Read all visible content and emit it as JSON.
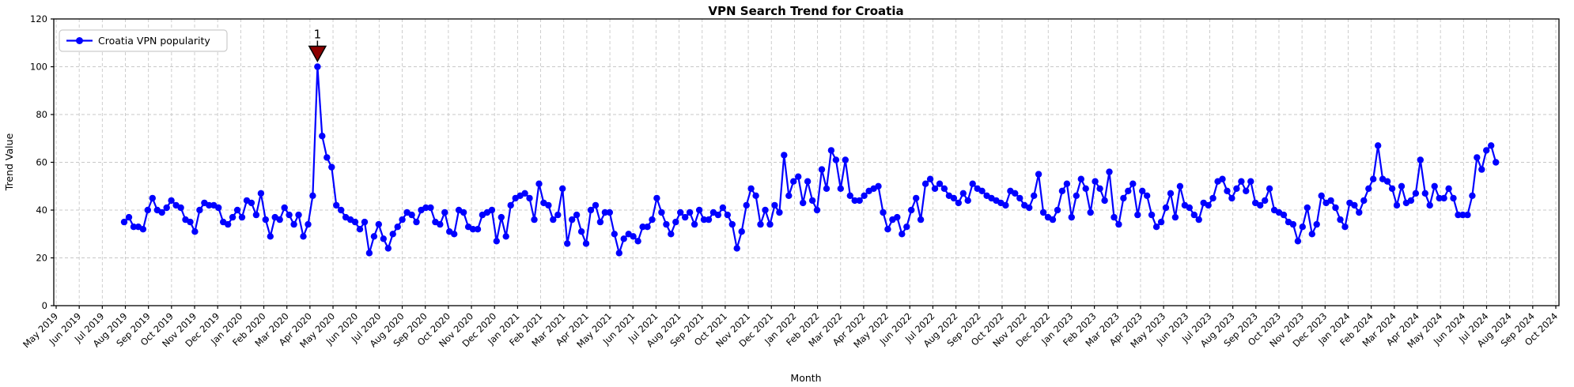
{
  "chart_data": {
    "type": "line",
    "title": "VPN Search Trend for Croatia",
    "xlabel": "Month",
    "ylabel": "Trend Value",
    "ylim": [
      0,
      120
    ],
    "yticks": [
      0,
      20,
      40,
      60,
      80,
      100,
      120
    ],
    "grid": true,
    "x_tick_labels": [
      "May 2019",
      "Jun 2019",
      "Jul 2019",
      "Aug 2019",
      "Sep 2019",
      "Oct 2019",
      "Nov 2019",
      "Dec 2019",
      "Jan 2020",
      "Feb 2020",
      "Mar 2020",
      "Apr 2020",
      "May 2020",
      "Jun 2020",
      "Jul 2020",
      "Aug 2020",
      "Sep 2020",
      "Oct 2020",
      "Nov 2020",
      "Dec 2020",
      "Jan 2021",
      "Feb 2021",
      "Mar 2021",
      "Apr 2021",
      "May 2021",
      "Jun 2021",
      "Jul 2021",
      "Aug 2021",
      "Sep 2021",
      "Oct 2021",
      "Nov 2021",
      "Dec 2021",
      "Jan 2022",
      "Feb 2022",
      "Mar 2022",
      "Apr 2022",
      "May 2022",
      "Jun 2022",
      "Jul 2022",
      "Aug 2022",
      "Sep 2022",
      "Oct 2022",
      "Nov 2022",
      "Dec 2022",
      "Jan 2023",
      "Feb 2023",
      "Mar 2023",
      "Apr 2023",
      "May 2023",
      "Jun 2023",
      "Jul 2023",
      "Aug 2023",
      "Sep 2023",
      "Oct 2023",
      "Nov 2023",
      "Dec 2023",
      "Jan 2024",
      "Feb 2024",
      "Mar 2024",
      "Apr 2024",
      "May 2024",
      "Jun 2024",
      "Jul 2024",
      "Aug 2024",
      "Sep 2024",
      "Oct 2024"
    ],
    "x_range_months": {
      "first_point": 2.95,
      "last_point": 62.4
    },
    "cadence": "weekly",
    "series": [
      {
        "name": "Croatia VPN popularity",
        "color": "#0000FF",
        "marker": "circle",
        "values": [
          35,
          37,
          33,
          33,
          32,
          40,
          45,
          40,
          39,
          41,
          44,
          42,
          41,
          36,
          35,
          31,
          40,
          43,
          42,
          42,
          41,
          35,
          34,
          37,
          40,
          37,
          44,
          43,
          38,
          47,
          36,
          29,
          37,
          36,
          41,
          38,
          34,
          38,
          29,
          34,
          46,
          100,
          71,
          62,
          58,
          42,
          40,
          37,
          36,
          35,
          32,
          35,
          22,
          29,
          34,
          28,
          24,
          30,
          33,
          36,
          39,
          38,
          35,
          40,
          41,
          41,
          35,
          34,
          39,
          31,
          30,
          40,
          39,
          33,
          32,
          32,
          38,
          39,
          40,
          27,
          37,
          29,
          42,
          45,
          46,
          47,
          45,
          36,
          51,
          43,
          42,
          36,
          38,
          49,
          26,
          36,
          38,
          31,
          26,
          40,
          42,
          35,
          39,
          39,
          30,
          22,
          28,
          30,
          29,
          27,
          33,
          33,
          36,
          45,
          39,
          34,
          30,
          35,
          39,
          37,
          39,
          34,
          40,
          36,
          36,
          39,
          38,
          41,
          38,
          34,
          24,
          31,
          42,
          49,
          46,
          34,
          40,
          34,
          42,
          39,
          63,
          46,
          52,
          54,
          43,
          52,
          44,
          40,
          57,
          49,
          65,
          61,
          49,
          61,
          46,
          44,
          44,
          46,
          48,
          49,
          50,
          39,
          32,
          36,
          37,
          30,
          33,
          40,
          45,
          36,
          51,
          53,
          49,
          51,
          49,
          46,
          45,
          43,
          47,
          44,
          51,
          49,
          48,
          46,
          45,
          44,
          43,
          42,
          48,
          47,
          45,
          42,
          41,
          46,
          55,
          39,
          37,
          36,
          40,
          48,
          51,
          37,
          46,
          53,
          49,
          39,
          52,
          49,
          44,
          56,
          37,
          34,
          45,
          48,
          51,
          38,
          48,
          46,
          38,
          33,
          35,
          41,
          47,
          37,
          50,
          42,
          41,
          38,
          36,
          43,
          42,
          45,
          52,
          53,
          48,
          45,
          49,
          52,
          48,
          52,
          43,
          42,
          44,
          49,
          40,
          39,
          38,
          35,
          34,
          27,
          33,
          41,
          30,
          34,
          46,
          43,
          44,
          41,
          36,
          33,
          43,
          42,
          39,
          44,
          49,
          53,
          67,
          53,
          52,
          49,
          42,
          50,
          43,
          44,
          47,
          61,
          47,
          42,
          50,
          45,
          45,
          49,
          45,
          38,
          38,
          38,
          46,
          62,
          57,
          65,
          67,
          60
        ]
      }
    ],
    "annotation": {
      "text": "1",
      "point_index": 41,
      "value": 100,
      "text_color": "#8B0000",
      "marker": "triangle-down",
      "marker_fill": "#8B0000",
      "marker_edge": "#000000"
    },
    "legend": {
      "position": "upper left",
      "entries": [
        {
          "label": "Croatia VPN popularity",
          "color": "#0000FF",
          "marker": "circle"
        }
      ]
    }
  },
  "colors": {
    "line": "#0000FF",
    "grid": "#c8c8c8",
    "axis": "#000000",
    "background": "#ffffff",
    "annotation": "#8B0000",
    "legend_border": "#cccccc"
  }
}
